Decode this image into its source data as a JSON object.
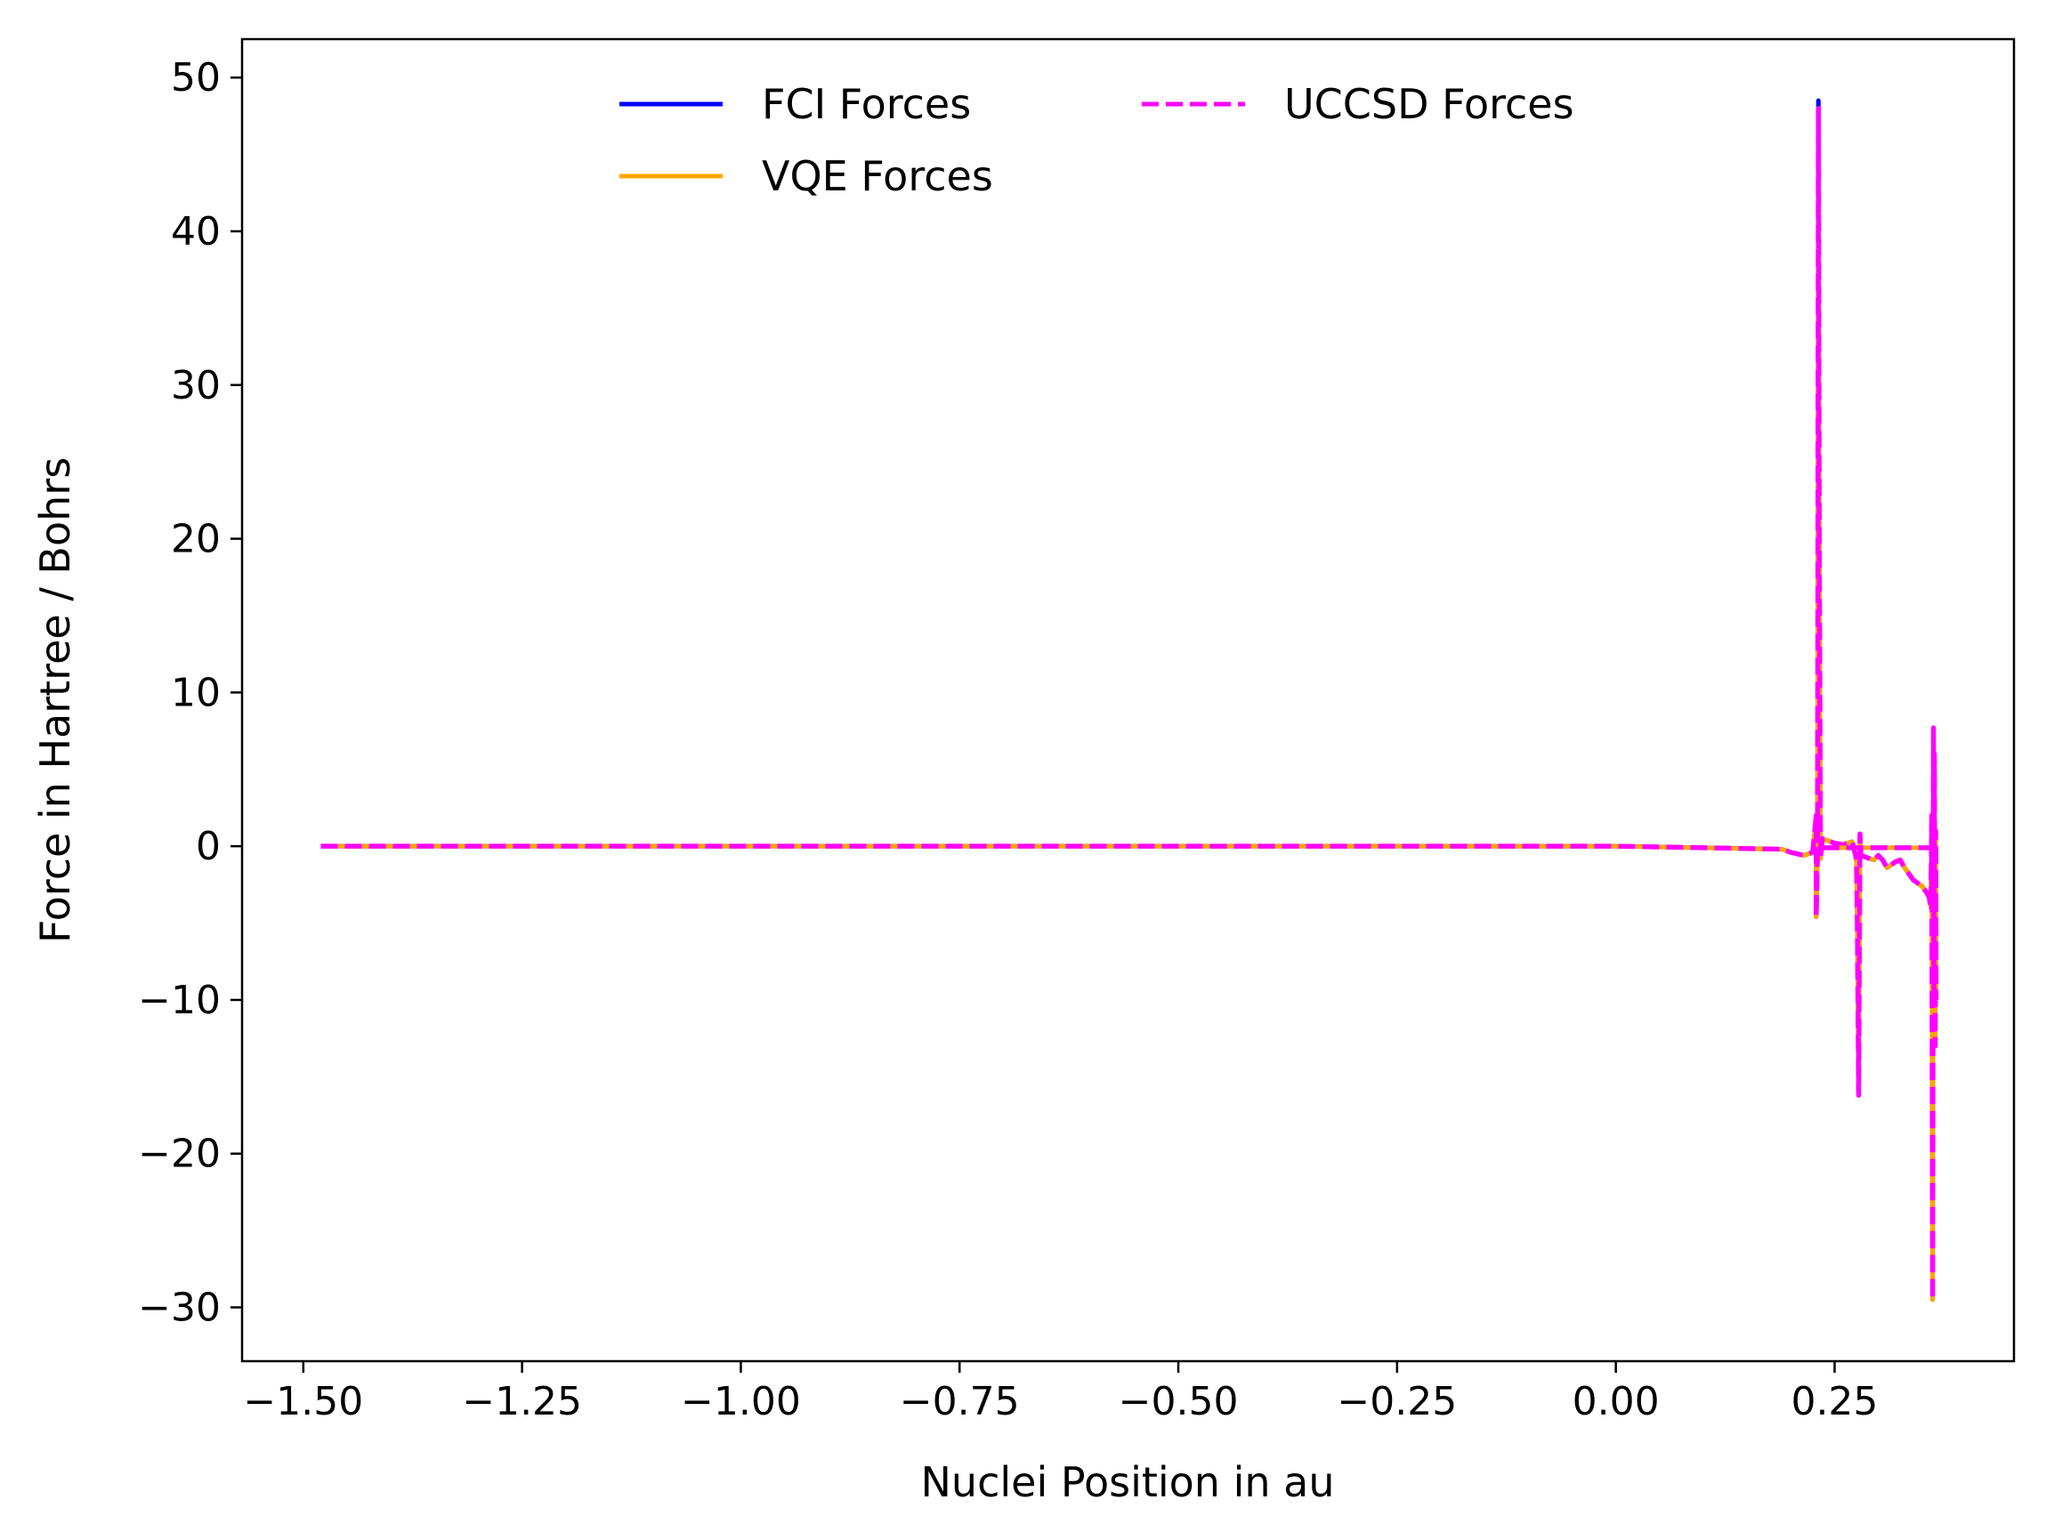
{
  "chart_data": {
    "type": "line",
    "title": "",
    "xlabel": "Nuclei Position in au",
    "ylabel": "Force in Hartree / Bohrs",
    "xlim": [
      -1.57,
      0.455
    ],
    "ylim": [
      -33.5,
      52.5
    ],
    "grid": false,
    "legend_placement": "upper center",
    "x_ticks": [
      -1.5,
      -1.25,
      -1.0,
      -0.75,
      -0.5,
      -0.25,
      0.0,
      0.25
    ],
    "x_tick_labels": [
      "−1.50",
      "−1.25",
      "−1.00",
      "−0.75",
      "−0.50",
      "−0.25",
      "0.00",
      "0.25"
    ],
    "y_ticks": [
      -30,
      -20,
      -10,
      0,
      10,
      20,
      30,
      40,
      50
    ],
    "y_tick_labels": [
      "−30",
      "−20",
      "−10",
      "0",
      "10",
      "20",
      "30",
      "40",
      "50"
    ],
    "series": [
      {
        "name": "FCI Forces",
        "color": "#0000ff",
        "style": "solid",
        "x": [
          -1.48,
          -1.0,
          -0.5,
          0.0,
          0.1,
          0.19,
          0.2,
          0.215,
          0.225,
          0.229,
          0.229,
          0.2305,
          0.2315,
          0.2325,
          0.2335,
          0.234,
          0.236,
          0.24,
          0.25,
          0.26,
          0.27,
          0.274,
          0.275,
          0.276,
          0.2775,
          0.279,
          0.28,
          0.285,
          0.29,
          0.295,
          0.3,
          0.305,
          0.31,
          0.32,
          0.325,
          0.33,
          0.34,
          0.35,
          0.355,
          0.358,
          0.36,
          0.361,
          0.362,
          0.363,
          0.3635,
          0.364,
          0.365,
          0.3655,
          0.366
        ],
        "y": [
          0,
          0,
          0,
          0,
          -0.1,
          -0.2,
          -0.4,
          -0.6,
          -0.4,
          2.0,
          -4.6,
          -0.5,
          48.5,
          20.0,
          5.0,
          -0.8,
          0.5,
          0.4,
          0.2,
          0.1,
          0.3,
          -0.6,
          -1.0,
          -5.0,
          -16.2,
          0.8,
          -0.6,
          -0.7,
          -0.8,
          -0.9,
          -0.6,
          -0.9,
          -1.4,
          -1.0,
          -0.9,
          -1.4,
          -2.2,
          -2.6,
          -3.0,
          -3.3,
          -4.0,
          2.0,
          -29.5,
          7.7,
          -10.0,
          6.0,
          -13.0,
          1.0,
          -10.0
        ]
      },
      {
        "name": "VQE Forces",
        "color": "#ffa500",
        "style": "solid",
        "x": [
          -1.48,
          -1.0,
          -0.5,
          0.0,
          0.1,
          0.19,
          0.2,
          0.215,
          0.225,
          0.229,
          0.229,
          0.2305,
          0.2315,
          0.2325,
          0.2335,
          0.234,
          0.236,
          0.24,
          0.25,
          0.26,
          0.27,
          0.274,
          0.275,
          0.276,
          0.2775,
          0.279,
          0.28,
          0.285,
          0.29,
          0.295,
          0.3,
          0.305,
          0.31,
          0.32,
          0.325,
          0.33,
          0.34,
          0.35,
          0.355,
          0.358,
          0.36,
          0.361,
          0.362,
          0.363,
          0.3635,
          0.364,
          0.365,
          0.3655,
          0.366
        ],
        "y": [
          0,
          0,
          0,
          0,
          -0.1,
          -0.2,
          -0.4,
          -0.6,
          -0.4,
          2.0,
          -4.6,
          -0.5,
          48.0,
          20.0,
          5.0,
          -0.8,
          0.5,
          0.4,
          0.2,
          0.1,
          0.3,
          -0.6,
          -1.0,
          -5.0,
          -16.2,
          0.8,
          -0.6,
          -0.7,
          -0.8,
          -0.9,
          -0.6,
          -0.9,
          -1.4,
          -1.0,
          -0.9,
          -1.4,
          -2.2,
          -2.6,
          -3.0,
          -3.3,
          -4.0,
          2.0,
          -29.5,
          7.7,
          -10.0,
          6.0,
          -13.0,
          1.0,
          -10.0
        ]
      },
      {
        "name": "UCCSD Forces",
        "color": "#ff00ff",
        "style": "dashed",
        "x": [
          -1.48,
          -1.0,
          -0.5,
          0.0,
          0.1,
          0.19,
          0.2,
          0.215,
          0.225,
          0.229,
          0.229,
          0.2305,
          0.2315,
          0.2325,
          0.2335,
          0.234,
          0.236,
          0.24,
          0.25,
          0.26,
          0.27,
          0.274,
          0.275,
          0.276,
          0.2775,
          0.279,
          0.28,
          0.285,
          0.29,
          0.295,
          0.3,
          0.305,
          0.31,
          0.32,
          0.325,
          0.33,
          0.34,
          0.35,
          0.355,
          0.358,
          0.36,
          0.361,
          0.362,
          0.363,
          0.3635,
          0.364,
          0.365,
          0.3655,
          0.366
        ],
        "y": [
          0,
          0,
          0,
          0,
          -0.1,
          -0.2,
          -0.4,
          -0.6,
          -0.4,
          2.0,
          -4.6,
          -0.5,
          48.0,
          20.0,
          5.0,
          -0.8,
          0.5,
          0.4,
          0.2,
          0.1,
          0.3,
          -0.6,
          -1.0,
          -5.0,
          -16.2,
          0.8,
          -0.6,
          -0.7,
          -0.8,
          -0.9,
          -0.6,
          -0.9,
          -1.4,
          -1.0,
          -0.9,
          -1.4,
          -2.2,
          -2.6,
          -3.0,
          -3.3,
          -4.0,
          2.0,
          -29.5,
          7.7,
          -10.0,
          6.0,
          -13.0,
          1.0,
          -10.0
        ]
      },
      {
        "name": "",
        "color": "#ffa500",
        "style": "solid",
        "x": [
          0.236,
          0.25,
          0.27,
          0.29,
          0.31,
          0.33,
          0.35,
          0.359
        ],
        "y": [
          -0.1,
          -0.1,
          -0.1,
          -0.1,
          -0.1,
          -0.1,
          -0.1,
          -0.1
        ]
      },
      {
        "name": "",
        "color": "#ff00ff",
        "style": "dashed",
        "x": [
          0.236,
          0.25,
          0.27,
          0.29,
          0.31,
          0.33,
          0.35,
          0.359
        ],
        "y": [
          -0.1,
          -0.1,
          -0.1,
          -0.1,
          -0.1,
          -0.1,
          -0.1,
          -0.1
        ]
      }
    ],
    "legend": [
      {
        "label": "FCI Forces",
        "color": "#0000ff",
        "style": "solid"
      },
      {
        "label": "VQE Forces",
        "color": "#ffa500",
        "style": "solid"
      },
      {
        "label": "UCCSD Forces",
        "color": "#ff00ff",
        "style": "dashed"
      }
    ]
  }
}
